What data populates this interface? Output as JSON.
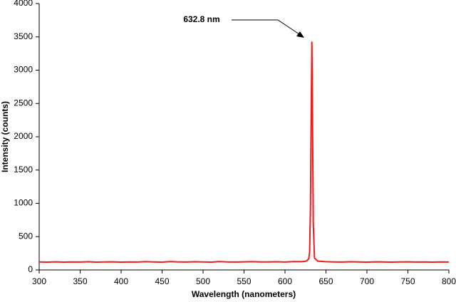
{
  "chart_data": {
    "type": "line",
    "annotation": "632.8 nm",
    "x_label": "Wavelength (nanometers)",
    "y_label": "Intensity (counts)",
    "x": [
      300,
      310,
      320,
      330,
      340,
      350,
      360,
      370,
      380,
      390,
      400,
      410,
      420,
      430,
      440,
      450,
      460,
      470,
      480,
      490,
      500,
      510,
      520,
      530,
      540,
      550,
      560,
      570,
      580,
      590,
      600,
      610,
      620,
      624,
      627,
      629,
      630,
      631,
      632,
      632.8,
      633.6,
      634.5,
      636,
      640,
      650,
      660,
      670,
      680,
      690,
      700,
      710,
      720,
      730,
      740,
      750,
      760,
      770,
      780,
      790,
      800
    ],
    "series": [
      {
        "color": "#ee1c1c",
        "values": [
          120,
          118,
          122,
          117,
          121,
          119,
          123,
          118,
          120,
          122,
          117,
          121,
          119,
          124,
          120,
          118,
          126,
          121,
          119,
          123,
          120,
          118,
          125,
          121,
          119,
          122,
          124,
          120,
          121,
          123,
          119,
          125,
          124,
          128,
          140,
          170,
          260,
          900,
          2400,
          3420,
          2200,
          700,
          180,
          132,
          124,
          121,
          119,
          123,
          120,
          118,
          122,
          121,
          117,
          120,
          122,
          119,
          121,
          118,
          120,
          119
        ]
      }
    ],
    "xlim": [
      300,
      800
    ],
    "xticks": [
      300,
      350,
      400,
      450,
      500,
      550,
      600,
      650,
      700,
      750,
      800
    ],
    "ylim": [
      0,
      4000
    ],
    "yticks": [
      0,
      500,
      1000,
      1500,
      2000,
      2500,
      3000,
      3500,
      4000
    ],
    "grid": false
  }
}
